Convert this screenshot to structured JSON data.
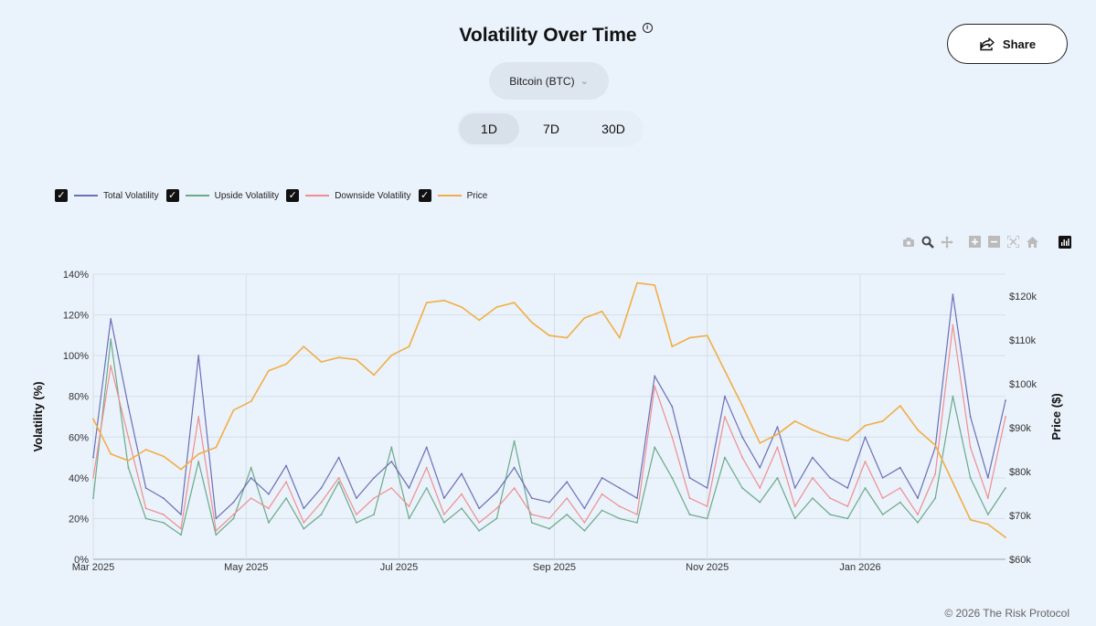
{
  "page": {
    "title": "Volatility Over Time",
    "share_label": "Share",
    "asset_selected": "Bitcoin (BTC)",
    "periods": [
      "1D",
      "7D",
      "30D"
    ],
    "active_period": "1D",
    "footer": "© 2026 The Risk Protocol"
  },
  "legend": [
    {
      "label": "Total Volatility",
      "color": "#6b6fb6",
      "checked": true
    },
    {
      "label": "Upside Volatility",
      "color": "#6aaa89",
      "checked": true
    },
    {
      "label": "Downside Volatility",
      "color": "#ef8f8f",
      "checked": true
    },
    {
      "label": "Price",
      "color": "#f2ae45",
      "checked": true
    }
  ],
  "chart_data": {
    "type": "line",
    "title": "Volatility Over Time",
    "x_range": [
      "2025-03-01",
      "2026-02-28"
    ],
    "x_ticks": [
      {
        "label": "Mar 2025",
        "date": "2025-03-01"
      },
      {
        "label": "May 2025",
        "date": "2025-05-01"
      },
      {
        "label": "Jul 2025",
        "date": "2025-07-01"
      },
      {
        "label": "Sep 2025",
        "date": "2025-09-01"
      },
      {
        "label": "Nov 2025",
        "date": "2025-11-01"
      },
      {
        "label": "Jan 2026",
        "date": "2026-01-01"
      }
    ],
    "y_left": {
      "label": "Volatility (%)",
      "range": [
        0,
        140
      ],
      "ticks": [
        0,
        20,
        40,
        60,
        80,
        100,
        120,
        140
      ],
      "tick_labels": [
        "0%",
        "20%",
        "40%",
        "60%",
        "80%",
        "100%",
        "120%",
        "140%"
      ]
    },
    "y_right": {
      "label": "Price ($)",
      "range": [
        60000,
        125000
      ],
      "ticks": [
        60000,
        70000,
        80000,
        90000,
        100000,
        110000,
        120000
      ],
      "tick_labels": [
        "$60k",
        "$70k",
        "$80k",
        "$90k",
        "$100k",
        "$110k",
        "$120k"
      ]
    },
    "series": [
      {
        "name": "Price",
        "axis": "right",
        "dates": [
          "2025-03-01",
          "2025-03-08",
          "2025-03-15",
          "2025-03-22",
          "2025-03-29",
          "2025-04-05",
          "2025-04-12",
          "2025-04-19",
          "2025-04-26",
          "2025-05-03",
          "2025-05-10",
          "2025-05-17",
          "2025-05-24",
          "2025-05-31",
          "2025-06-07",
          "2025-06-14",
          "2025-06-21",
          "2025-06-28",
          "2025-07-05",
          "2025-07-12",
          "2025-07-19",
          "2025-07-26",
          "2025-08-02",
          "2025-08-09",
          "2025-08-16",
          "2025-08-23",
          "2025-08-30",
          "2025-09-06",
          "2025-09-13",
          "2025-09-20",
          "2025-09-27",
          "2025-10-04",
          "2025-10-11",
          "2025-10-18",
          "2025-10-25",
          "2025-11-01",
          "2025-11-08",
          "2025-11-15",
          "2025-11-22",
          "2025-11-29",
          "2025-12-06",
          "2025-12-13",
          "2025-12-20",
          "2025-12-27",
          "2026-01-03",
          "2026-01-10",
          "2026-01-17",
          "2026-01-24",
          "2026-01-31",
          "2026-02-07",
          "2026-02-14",
          "2026-02-21",
          "2026-02-28"
        ],
        "values": [
          92000,
          84000,
          82500,
          85000,
          83500,
          80500,
          84000,
          85500,
          94000,
          96000,
          103000,
          104500,
          108500,
          105000,
          106000,
          105500,
          102000,
          106500,
          108500,
          118500,
          119000,
          117500,
          114500,
          117500,
          118500,
          114000,
          111000,
          110500,
          115000,
          116500,
          110500,
          123000,
          122500,
          108500,
          110500,
          111000,
          103000,
          95000,
          86500,
          88500,
          91500,
          89500,
          88000,
          87000,
          90500,
          91500,
          95000,
          89500,
          86000,
          77500,
          69000,
          68000,
          65000
        ]
      },
      {
        "name": "Total Volatility",
        "axis": "left",
        "dates": [
          "2025-03-01",
          "2025-03-08",
          "2025-03-15",
          "2025-03-22",
          "2025-03-29",
          "2025-04-05",
          "2025-04-12",
          "2025-04-19",
          "2025-04-26",
          "2025-05-03",
          "2025-05-10",
          "2025-05-17",
          "2025-05-24",
          "2025-05-31",
          "2025-06-07",
          "2025-06-14",
          "2025-06-21",
          "2025-06-28",
          "2025-07-05",
          "2025-07-12",
          "2025-07-19",
          "2025-07-26",
          "2025-08-02",
          "2025-08-09",
          "2025-08-16",
          "2025-08-23",
          "2025-08-30",
          "2025-09-06",
          "2025-09-13",
          "2025-09-20",
          "2025-09-27",
          "2025-10-04",
          "2025-10-11",
          "2025-10-18",
          "2025-10-25",
          "2025-11-01",
          "2025-11-08",
          "2025-11-15",
          "2025-11-22",
          "2025-11-29",
          "2025-12-06",
          "2025-12-13",
          "2025-12-20",
          "2025-12-27",
          "2026-01-03",
          "2026-01-10",
          "2026-01-17",
          "2026-01-24",
          "2026-01-31",
          "2026-02-07",
          "2026-02-14",
          "2026-02-21",
          "2026-02-28"
        ],
        "values": [
          50,
          118,
          75,
          35,
          30,
          22,
          100,
          20,
          28,
          40,
          32,
          46,
          25,
          35,
          50,
          30,
          40,
          48,
          35,
          55,
          30,
          42,
          25,
          33,
          45,
          30,
          28,
          38,
          25,
          40,
          35,
          30,
          90,
          75,
          40,
          35,
          80,
          60,
          45,
          65,
          35,
          50,
          40,
          35,
          60,
          40,
          45,
          30,
          55,
          130,
          70,
          40,
          78
        ]
      },
      {
        "name": "Upside Volatility",
        "axis": "left",
        "dates": [
          "2025-03-01",
          "2025-03-08",
          "2025-03-15",
          "2025-03-22",
          "2025-03-29",
          "2025-04-05",
          "2025-04-12",
          "2025-04-19",
          "2025-04-26",
          "2025-05-03",
          "2025-05-10",
          "2025-05-17",
          "2025-05-24",
          "2025-05-31",
          "2025-06-07",
          "2025-06-14",
          "2025-06-21",
          "2025-06-28",
          "2025-07-05",
          "2025-07-12",
          "2025-07-19",
          "2025-07-26",
          "2025-08-02",
          "2025-08-09",
          "2025-08-16",
          "2025-08-23",
          "2025-08-30",
          "2025-09-06",
          "2025-09-13",
          "2025-09-20",
          "2025-09-27",
          "2025-10-04",
          "2025-10-11",
          "2025-10-18",
          "2025-10-25",
          "2025-11-01",
          "2025-11-08",
          "2025-11-15",
          "2025-11-22",
          "2025-11-29",
          "2025-12-06",
          "2025-12-13",
          "2025-12-20",
          "2025-12-27",
          "2026-01-03",
          "2026-01-10",
          "2026-01-17",
          "2026-01-24",
          "2026-01-31",
          "2026-02-07",
          "2026-02-14",
          "2026-02-21",
          "2026-02-28"
        ],
        "values": [
          30,
          108,
          45,
          20,
          18,
          12,
          48,
          12,
          20,
          45,
          18,
          30,
          15,
          22,
          38,
          18,
          22,
          55,
          20,
          35,
          18,
          25,
          14,
          20,
          58,
          18,
          15,
          22,
          14,
          24,
          20,
          18,
          55,
          40,
          22,
          20,
          50,
          35,
          28,
          40,
          20,
          30,
          22,
          20,
          35,
          22,
          28,
          18,
          30,
          80,
          40,
          22,
          35
        ]
      },
      {
        "name": "Downside Volatility",
        "axis": "left",
        "dates": [
          "2025-03-01",
          "2025-03-08",
          "2025-03-15",
          "2025-03-22",
          "2025-03-29",
          "2025-04-05",
          "2025-04-12",
          "2025-04-19",
          "2025-04-26",
          "2025-05-03",
          "2025-05-10",
          "2025-05-17",
          "2025-05-24",
          "2025-05-31",
          "2025-06-07",
          "2025-06-14",
          "2025-06-21",
          "2025-06-28",
          "2025-07-05",
          "2025-07-12",
          "2025-07-19",
          "2025-07-26",
          "2025-08-02",
          "2025-08-09",
          "2025-08-16",
          "2025-08-23",
          "2025-08-30",
          "2025-09-06",
          "2025-09-13",
          "2025-09-20",
          "2025-09-27",
          "2025-10-04",
          "2025-10-11",
          "2025-10-18",
          "2025-10-25",
          "2025-11-01",
          "2025-11-08",
          "2025-11-15",
          "2025-11-22",
          "2025-11-29",
          "2025-12-06",
          "2025-12-13",
          "2025-12-20",
          "2025-12-27",
          "2026-01-03",
          "2026-01-10",
          "2026-01-17",
          "2026-01-24",
          "2026-01-31",
          "2026-02-07",
          "2026-02-14",
          "2026-02-21",
          "2026-02-28"
        ],
        "values": [
          40,
          95,
          60,
          25,
          22,
          15,
          70,
          14,
          22,
          30,
          25,
          38,
          18,
          28,
          40,
          22,
          30,
          35,
          26,
          45,
          22,
          32,
          18,
          25,
          35,
          22,
          20,
          30,
          18,
          32,
          26,
          22,
          85,
          60,
          30,
          26,
          70,
          50,
          35,
          55,
          26,
          40,
          30,
          26,
          48,
          30,
          35,
          22,
          42,
          115,
          55,
          30,
          70
        ]
      }
    ]
  }
}
